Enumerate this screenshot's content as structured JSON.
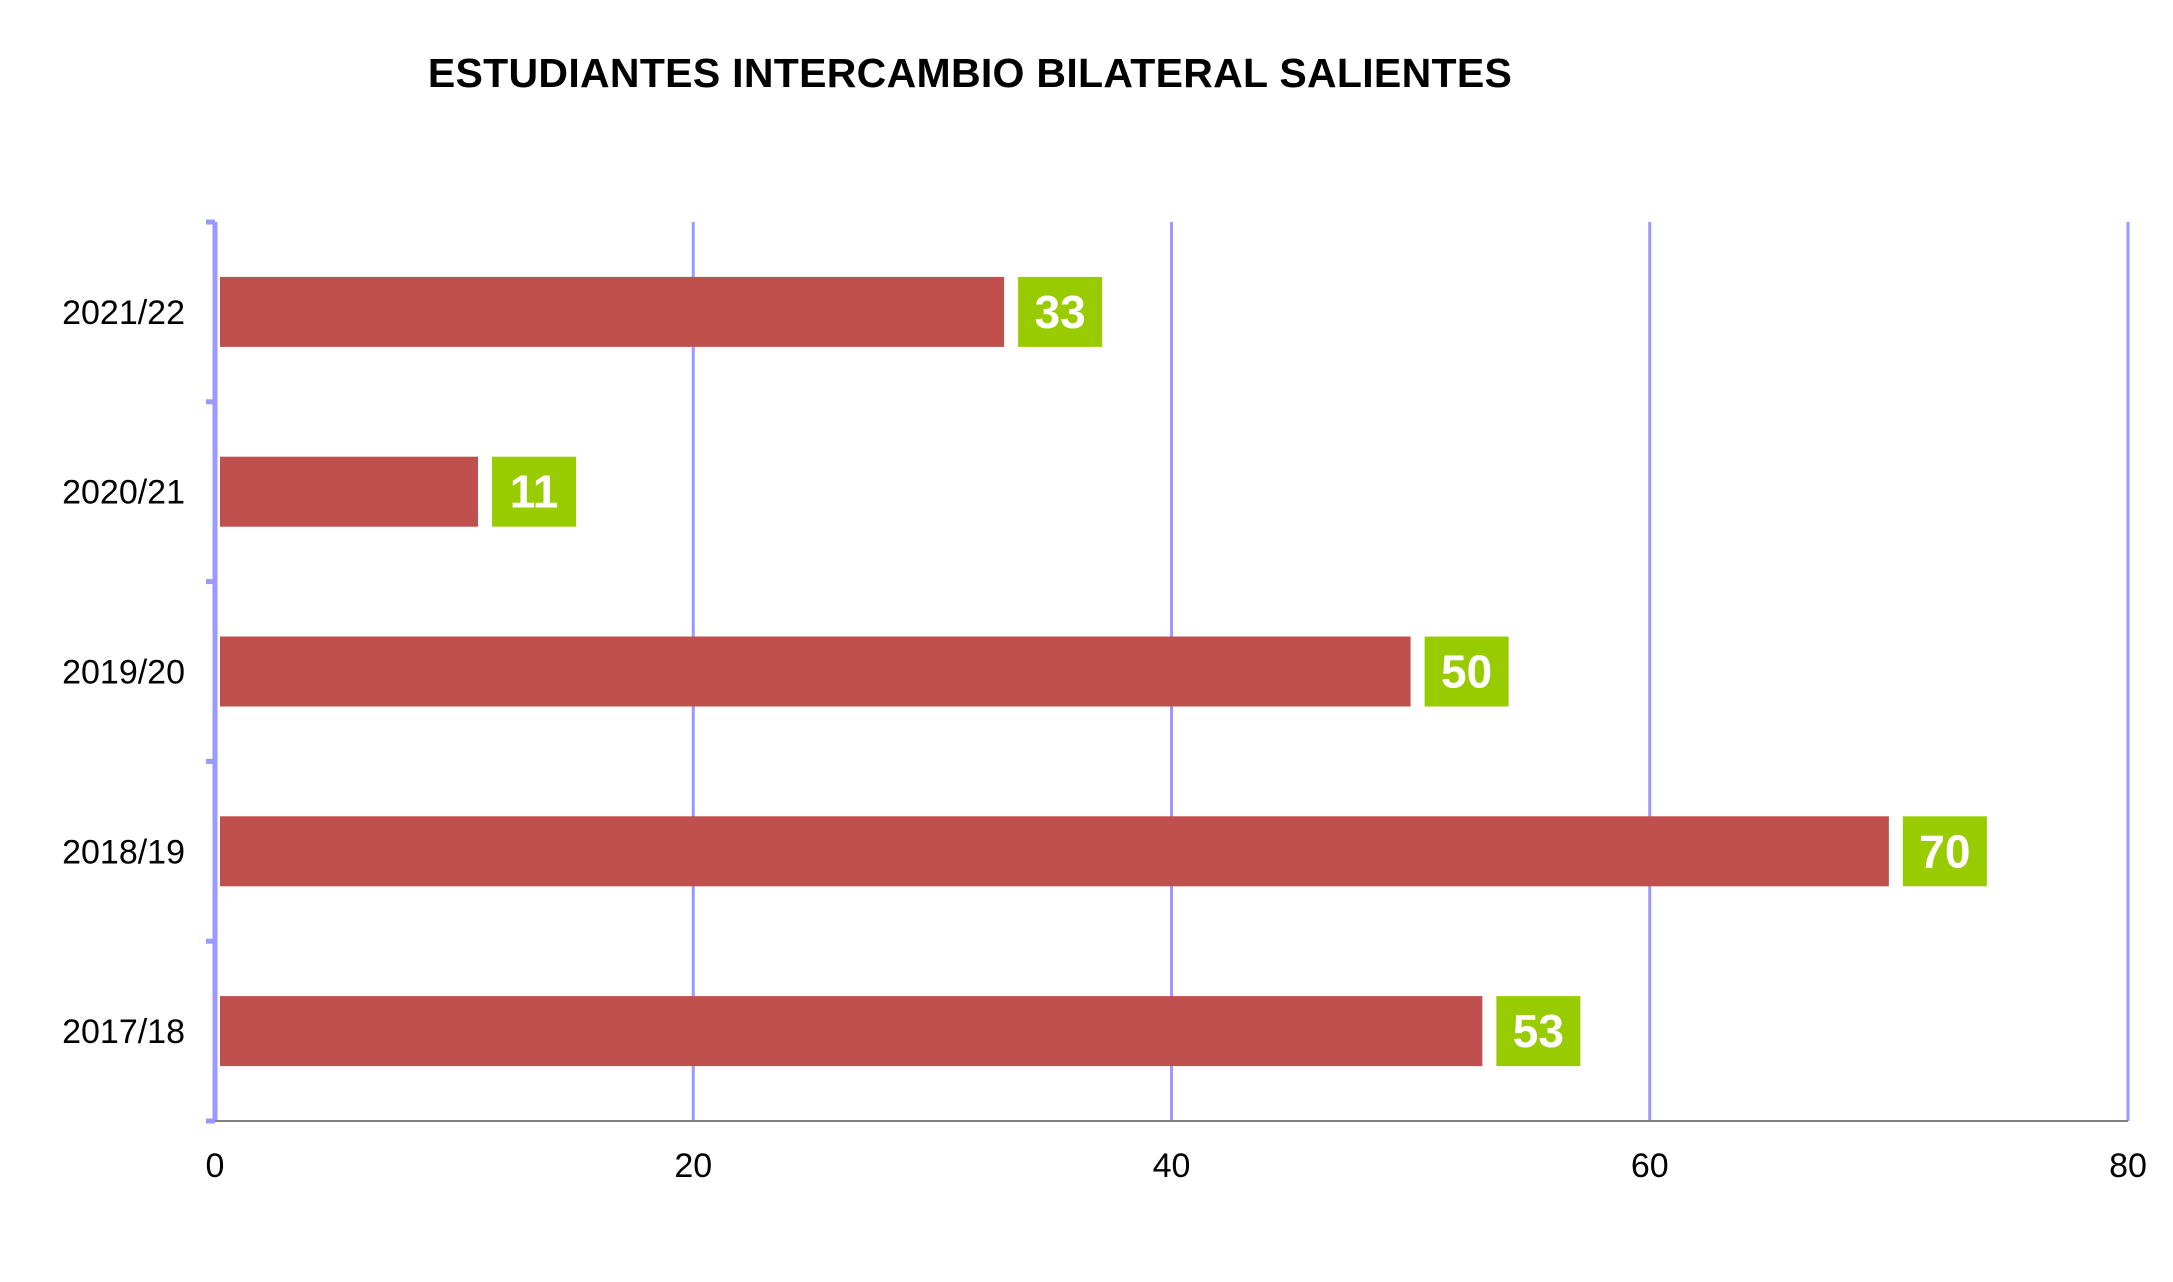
{
  "chart_data": {
    "type": "bar",
    "orientation": "horizontal",
    "title": "ESTUDIANTES INTERCAMBIO BILATERAL SALIENTES",
    "categories": [
      "2021/22",
      "2020/21",
      "2019/20",
      "2018/19",
      "2017/18"
    ],
    "values": [
      33,
      11,
      50,
      70,
      53
    ],
    "xlim": [
      0,
      80
    ],
    "x_ticks": [
      "0",
      "20",
      "40",
      "60",
      "80"
    ],
    "xlabel": "",
    "ylabel": "",
    "grid": "vertical",
    "legend": "none",
    "colors": {
      "bar": "#c0504d",
      "data_label_bg": "#99cc00",
      "data_label_text": "#ffffff",
      "gridline": "#9999ff",
      "axis": "#808080"
    }
  }
}
